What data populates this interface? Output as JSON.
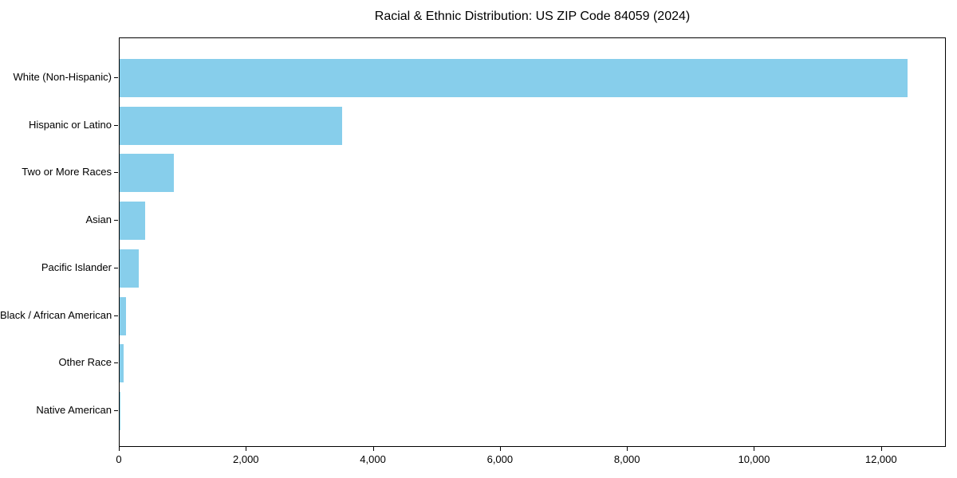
{
  "chart_data": {
    "type": "bar",
    "orientation": "horizontal",
    "title": "Racial & Ethnic Distribution: US ZIP Code 84059 (2024)",
    "categories": [
      "White (Non-Hispanic)",
      "Hispanic or Latino",
      "Two or More Races",
      "Asian",
      "Pacific Islander",
      "Black / African American",
      "Other Race",
      "Native American"
    ],
    "values": [
      12400,
      3500,
      850,
      400,
      300,
      100,
      60,
      15
    ],
    "xlabel": "",
    "ylabel": "",
    "xlim": [
      0,
      13020
    ],
    "xticks": [
      {
        "value": 0,
        "label": "0"
      },
      {
        "value": 2000,
        "label": "2,000"
      },
      {
        "value": 4000,
        "label": "4,000"
      },
      {
        "value": 6000,
        "label": "6,000"
      },
      {
        "value": 8000,
        "label": "8,000"
      },
      {
        "value": 10000,
        "label": "10,000"
      },
      {
        "value": 12000,
        "label": "12,000"
      }
    ],
    "bar_color": "#87CEEB",
    "grid": false,
    "legend_position": "none"
  }
}
